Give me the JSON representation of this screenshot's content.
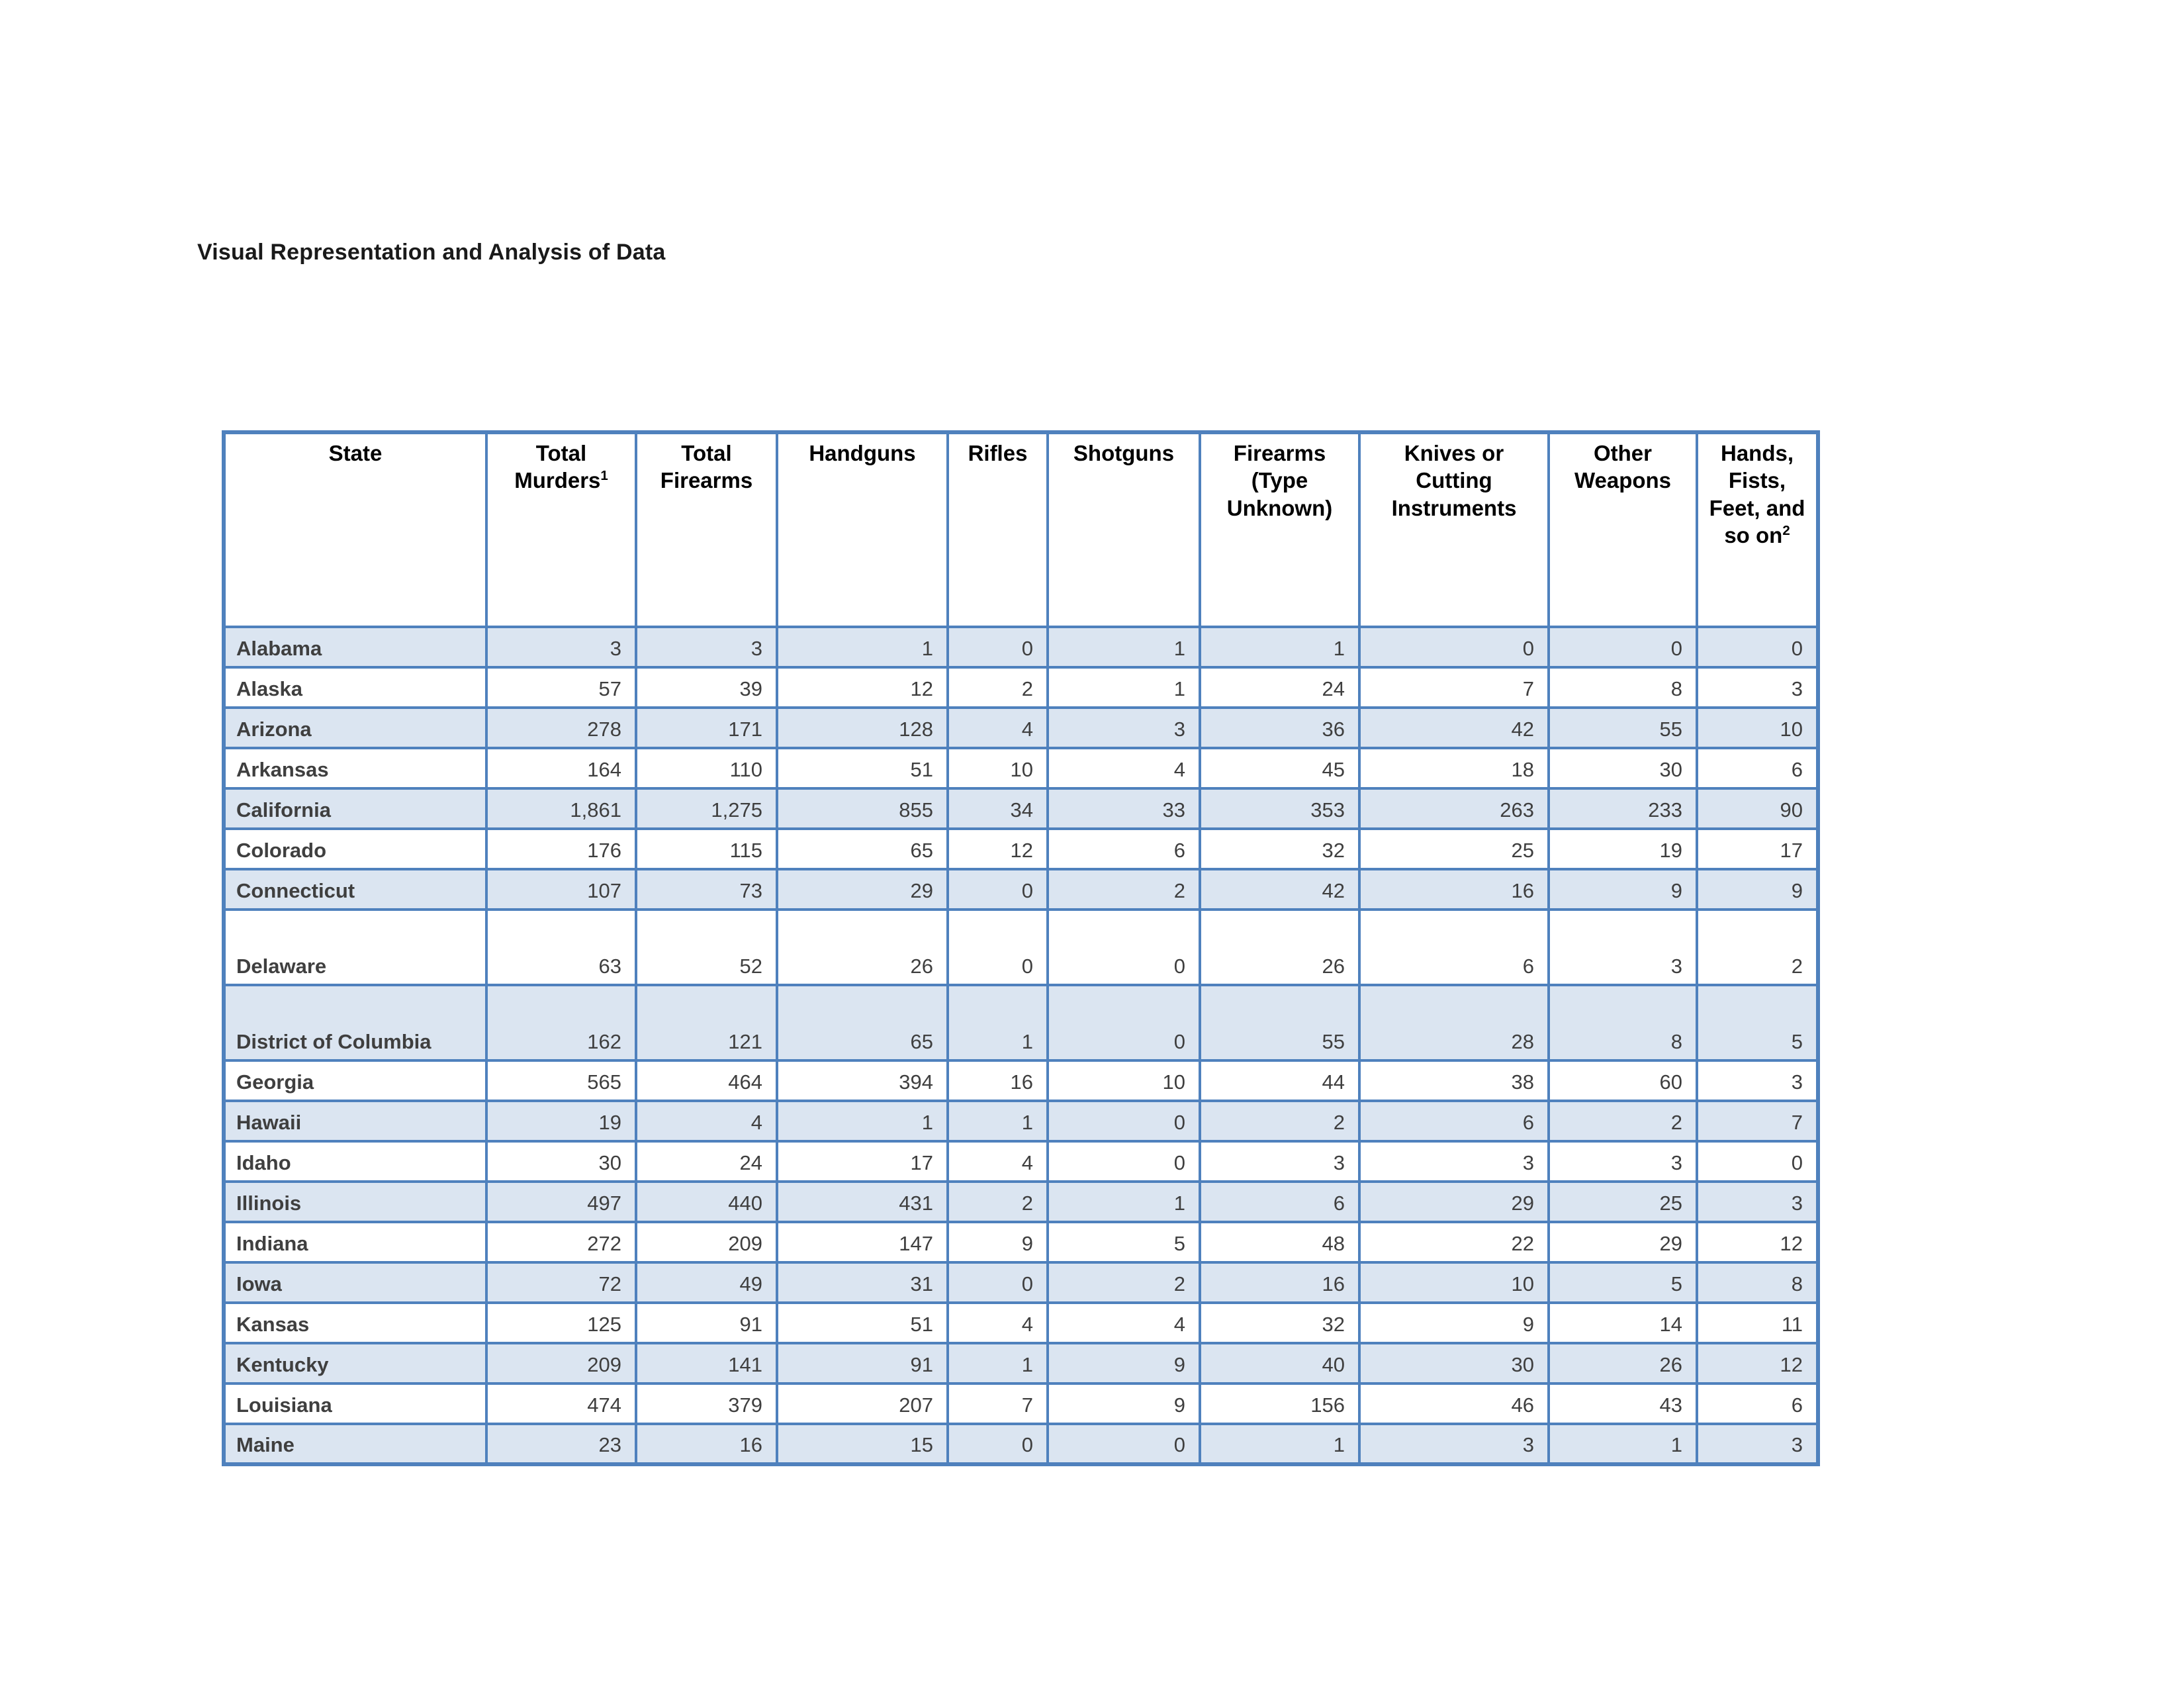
{
  "page": {
    "title": "Visual Representation and Analysis of Data"
  },
  "colors": {
    "table_border": "#4F81BD",
    "row_shading": "#DBE5F1",
    "body_text": "#3F3F3F",
    "header_text": "#000000"
  },
  "table": {
    "columns": [
      {
        "label": "State"
      },
      {
        "label": "Total Murders",
        "sup": "1"
      },
      {
        "label": "Total Firearms"
      },
      {
        "label": "Handguns"
      },
      {
        "label": "Rifles"
      },
      {
        "label": "Shotguns"
      },
      {
        "label": "Firearms (Type Unknown)"
      },
      {
        "label": "Knives or Cutting Instruments"
      },
      {
        "label": "Other Weapons"
      },
      {
        "label": "Hands, Fists, Feet, and so on",
        "sup": "2"
      }
    ],
    "rows": [
      {
        "state": "Alabama",
        "values": [
          "3",
          "3",
          "1",
          "0",
          "1",
          "1",
          "0",
          "0",
          "0"
        ],
        "shaded": true,
        "tall": false
      },
      {
        "state": "Alaska",
        "values": [
          "57",
          "39",
          "12",
          "2",
          "1",
          "24",
          "7",
          "8",
          "3"
        ],
        "shaded": false,
        "tall": false
      },
      {
        "state": "Arizona",
        "values": [
          "278",
          "171",
          "128",
          "4",
          "3",
          "36",
          "42",
          "55",
          "10"
        ],
        "shaded": true,
        "tall": false
      },
      {
        "state": "Arkansas",
        "values": [
          "164",
          "110",
          "51",
          "10",
          "4",
          "45",
          "18",
          "30",
          "6"
        ],
        "shaded": false,
        "tall": false
      },
      {
        "state": "California",
        "values": [
          "1,861",
          "1,275",
          "855",
          "34",
          "33",
          "353",
          "263",
          "233",
          "90"
        ],
        "shaded": true,
        "tall": false
      },
      {
        "state": "Colorado",
        "values": [
          "176",
          "115",
          "65",
          "12",
          "6",
          "32",
          "25",
          "19",
          "17"
        ],
        "shaded": false,
        "tall": false
      },
      {
        "state": "Connecticut",
        "values": [
          "107",
          "73",
          "29",
          "0",
          "2",
          "42",
          "16",
          "9",
          "9"
        ],
        "shaded": true,
        "tall": false
      },
      {
        "state": "Delaware",
        "values": [
          "63",
          "52",
          "26",
          "0",
          "0",
          "26",
          "6",
          "3",
          "2"
        ],
        "shaded": false,
        "tall": true
      },
      {
        "state": "District of Columbia",
        "values": [
          "162",
          "121",
          "65",
          "1",
          "0",
          "55",
          "28",
          "8",
          "5"
        ],
        "shaded": true,
        "tall": true
      },
      {
        "state": "Georgia",
        "values": [
          "565",
          "464",
          "394",
          "16",
          "10",
          "44",
          "38",
          "60",
          "3"
        ],
        "shaded": false,
        "tall": false
      },
      {
        "state": "Hawaii",
        "values": [
          "19",
          "4",
          "1",
          "1",
          "0",
          "2",
          "6",
          "2",
          "7"
        ],
        "shaded": true,
        "tall": false
      },
      {
        "state": "Idaho",
        "values": [
          "30",
          "24",
          "17",
          "4",
          "0",
          "3",
          "3",
          "3",
          "0"
        ],
        "shaded": false,
        "tall": false
      },
      {
        "state": "Illinois",
        "values": [
          "497",
          "440",
          "431",
          "2",
          "1",
          "6",
          "29",
          "25",
          "3"
        ],
        "shaded": true,
        "tall": false
      },
      {
        "state": "Indiana",
        "values": [
          "272",
          "209",
          "147",
          "9",
          "5",
          "48",
          "22",
          "29",
          "12"
        ],
        "shaded": false,
        "tall": false
      },
      {
        "state": "Iowa",
        "values": [
          "72",
          "49",
          "31",
          "0",
          "2",
          "16",
          "10",
          "5",
          "8"
        ],
        "shaded": true,
        "tall": false
      },
      {
        "state": "Kansas",
        "values": [
          "125",
          "91",
          "51",
          "4",
          "4",
          "32",
          "9",
          "14",
          "11"
        ],
        "shaded": false,
        "tall": false
      },
      {
        "state": "Kentucky",
        "values": [
          "209",
          "141",
          "91",
          "1",
          "9",
          "40",
          "30",
          "26",
          "12"
        ],
        "shaded": true,
        "tall": false
      },
      {
        "state": "Louisiana",
        "values": [
          "474",
          "379",
          "207",
          "7",
          "9",
          "156",
          "46",
          "43",
          "6"
        ],
        "shaded": false,
        "tall": false
      },
      {
        "state": "Maine",
        "values": [
          "23",
          "16",
          "15",
          "0",
          "0",
          "1",
          "3",
          "1",
          "3"
        ],
        "shaded": true,
        "tall": false
      }
    ]
  }
}
